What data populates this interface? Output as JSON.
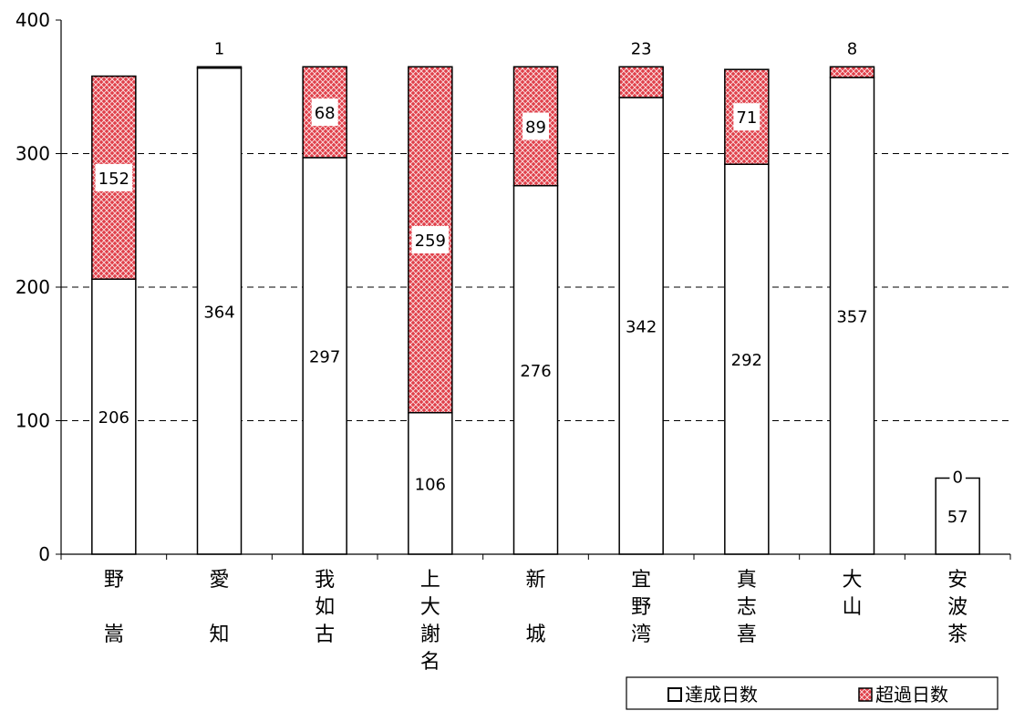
{
  "chart_data": {
    "type": "bar",
    "stacked": true,
    "title": "",
    "xlabel": "",
    "ylabel": "",
    "ylim": [
      0,
      400
    ],
    "yticks": [
      0,
      100,
      200,
      300,
      400
    ],
    "grid": "dashed horizontal",
    "legend_position": "bottom-right",
    "categories": [
      "野嵩",
      "愛知",
      "我如古",
      "上大謝名",
      "新城",
      "宜野湾",
      "真志喜",
      "大山",
      "安波茶"
    ],
    "category_lines": [
      [
        "野",
        "",
        "嵩"
      ],
      [
        "愛",
        "",
        "知"
      ],
      [
        "我",
        "如",
        "古"
      ],
      [
        "上",
        "大",
        "謝",
        "名"
      ],
      [
        "新",
        "",
        "城"
      ],
      [
        "宜",
        "野",
        "湾"
      ],
      [
        "真",
        "志",
        "喜"
      ],
      [
        "大",
        "山"
      ],
      [
        "安",
        "波",
        "茶"
      ]
    ],
    "series": [
      {
        "name": "達成日数",
        "values": [
          206,
          364,
          297,
          106,
          276,
          342,
          292,
          357,
          57
        ],
        "color": "#ffffff"
      },
      {
        "name": "超過日数",
        "values": [
          152,
          1,
          68,
          259,
          89,
          23,
          71,
          8,
          0
        ],
        "color": "#e0404a"
      }
    ]
  }
}
